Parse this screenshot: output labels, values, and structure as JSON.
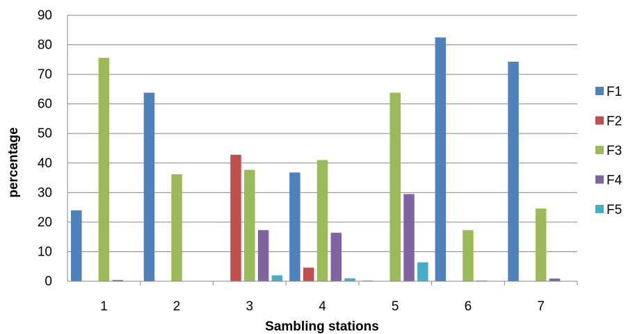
{
  "chart_data": {
    "type": "bar",
    "title": "",
    "xlabel": "Sambling stations",
    "ylabel": "percentage",
    "ylim": [
      0,
      90
    ],
    "ytick_step": 10,
    "grid": true,
    "legend_position": "right",
    "categories": [
      "1",
      "2",
      "3",
      "4",
      "5",
      "6",
      "7"
    ],
    "series": [
      {
        "name": "F1",
        "color": "#4F81BD",
        "values": [
          24,
          63.8,
          0,
          36.8,
          0.2,
          82.5,
          74.3
        ]
      },
      {
        "name": "F2",
        "color": "#C0504D",
        "values": [
          0,
          0,
          42.8,
          4.6,
          0,
          0,
          0
        ]
      },
      {
        "name": "F3",
        "color": "#9BBB59",
        "values": [
          75.6,
          36.2,
          37.7,
          41,
          63.8,
          17.3,
          24.6
        ]
      },
      {
        "name": "F4",
        "color": "#8064A2",
        "values": [
          0.4,
          0,
          17.3,
          16.4,
          29.5,
          0.2,
          0.9
        ]
      },
      {
        "name": "F5",
        "color": "#4BACC6",
        "values": [
          0,
          0,
          2,
          1,
          6.4,
          0,
          0
        ]
      }
    ]
  }
}
